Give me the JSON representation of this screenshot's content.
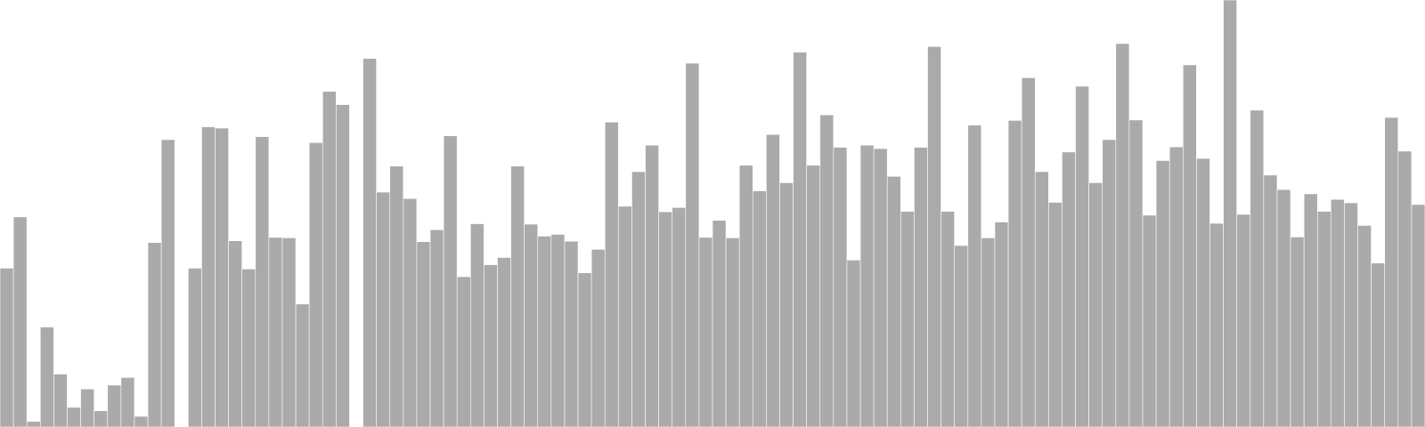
{
  "chart_data": {
    "type": "bar",
    "ylim": [
      0,
      100
    ],
    "grid": false,
    "bar_color": "#aaaaaa",
    "bar_edge_color": "#ffffff",
    "values": [
      37.2,
      49.2,
      1.3,
      23.4,
      12.4,
      4.6,
      8.9,
      3.8,
      9.8,
      11.6,
      2.5,
      43.2,
      67.3,
      null,
      37.2,
      70.3,
      70.0,
      43.6,
      37.0,
      68.0,
      44.4,
      44.3,
      28.8,
      66.6,
      78.6,
      75.5,
      null,
      86.3,
      55.0,
      61.1,
      53.5,
      43.4,
      46.2,
      68.2,
      35.2,
      47.6,
      38.0,
      39.7,
      61.1,
      47.5,
      44.7,
      45.1,
      43.5,
      36.1,
      41.6,
      71.4,
      51.7,
      59.8,
      66.0,
      50.4,
      51.4,
      85.2,
      44.4,
      48.4,
      44.3,
      61.3,
      55.3,
      68.5,
      57.2,
      87.8,
      61.3,
      73.1,
      65.5,
      39.1,
      66.0,
      65.2,
      58.7,
      50.5,
      65.5,
      89.1,
      50.5,
      42.5,
      70.7,
      44.3,
      48.0,
      71.8,
      81.8,
      59.8,
      52.6,
      64.4,
      79.8,
      57.2,
      67.3,
      89.8,
      71.9,
      49.6,
      62.4,
      65.6,
      84.8,
      62.9,
      47.7,
      100.0,
      49.8,
      74.2,
      59.0,
      55.6,
      44.5,
      54.6,
      50.5,
      53.3,
      52.5,
      47.2,
      38.4,
      72.5,
      64.6,
      52.1
    ]
  }
}
